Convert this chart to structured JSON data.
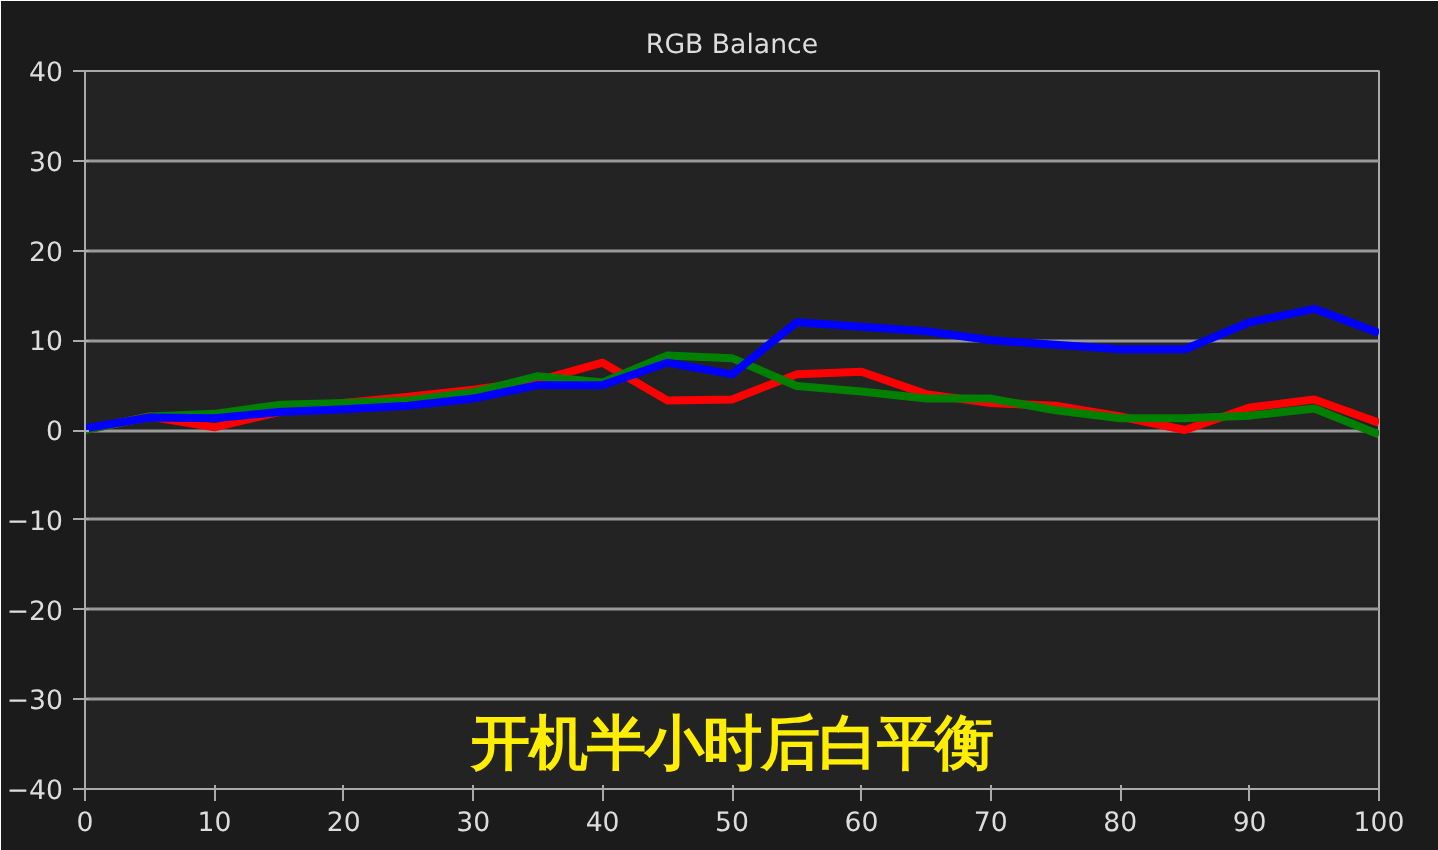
{
  "chart_data": {
    "type": "line",
    "title": "RGB Balance",
    "x": [
      0,
      5,
      10,
      15,
      20,
      25,
      30,
      35,
      40,
      45,
      50,
      55,
      60,
      65,
      70,
      75,
      80,
      85,
      90,
      95,
      100
    ],
    "series": [
      {
        "color": "#ff0000",
        "values": [
          0,
          1.5,
          0.3,
          2,
          3,
          3.7,
          4.5,
          5.5,
          7.5,
          3.3,
          3.4,
          6.2,
          6.5,
          4,
          3,
          2.7,
          1.5,
          0,
          2.5,
          3.4,
          0.8
        ]
      },
      {
        "color": "#008000",
        "values": [
          0,
          1.5,
          1.8,
          2.8,
          3,
          3.3,
          4.2,
          6,
          5.3,
          8.3,
          8,
          4.9,
          4.3,
          3.5,
          3.5,
          2.2,
          1.3,
          1.3,
          1.6,
          2.4,
          -0.5
        ]
      },
      {
        "color": "#0000ff",
        "values": [
          0.2,
          1.4,
          1.3,
          2,
          2.3,
          2.7,
          3.5,
          5,
          5,
          7.5,
          6.2,
          12,
          11.5,
          11,
          10,
          9.5,
          9,
          9,
          12,
          13.5,
          10.8
        ]
      }
    ],
    "xlim": [
      0,
      100
    ],
    "xticks": [
      0,
      10,
      20,
      30,
      40,
      50,
      60,
      70,
      80,
      90,
      100
    ],
    "ylim": [
      -40,
      40
    ],
    "yticks": [
      -40,
      -30,
      -20,
      -10,
      0,
      10,
      20,
      30,
      40
    ],
    "grid": "y",
    "marker": "none",
    "line_style": "solid",
    "annotations": [
      "开机半小时后白平衡"
    ]
  }
}
